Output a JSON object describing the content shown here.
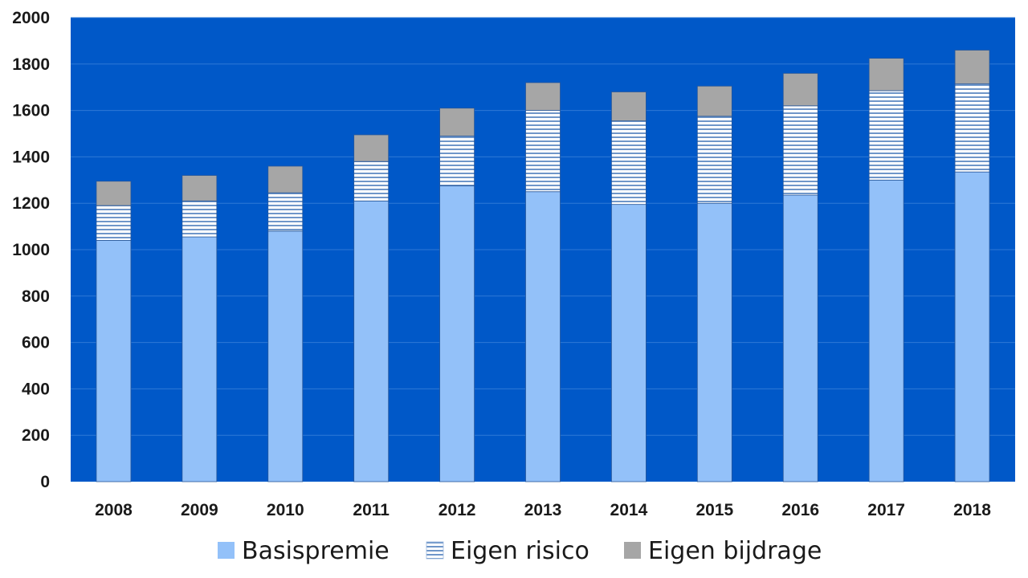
{
  "chart_data": {
    "type": "bar",
    "stacked": true,
    "categories": [
      "2008",
      "2009",
      "2010",
      "2011",
      "2012",
      "2013",
      "2014",
      "2015",
      "2016",
      "2017",
      "2018"
    ],
    "series": [
      {
        "name": "Basispremie",
        "values": [
          1040,
          1055,
          1080,
          1210,
          1275,
          1250,
          1195,
          1200,
          1235,
          1300,
          1335
        ],
        "color": "#93C1F9",
        "pattern": "solid"
      },
      {
        "name": "Eigen risico",
        "values": [
          150,
          155,
          165,
          170,
          215,
          350,
          360,
          375,
          385,
          385,
          380
        ],
        "color": "#DAE8FC",
        "pattern": "horizontal-lines"
      },
      {
        "name": "Eigen bijdrage",
        "values": [
          105,
          110,
          115,
          115,
          120,
          120,
          125,
          130,
          140,
          140,
          145
        ],
        "color": "#A6A6A6",
        "pattern": "solid"
      }
    ],
    "ylim": [
      0,
      2000
    ],
    "yticks": [
      0,
      200,
      400,
      600,
      800,
      1000,
      1200,
      1400,
      1600,
      1800,
      2000
    ],
    "grid": true,
    "legend_position": "bottom",
    "plot_background": "#0058C8",
    "grid_color": "#2E78D6"
  }
}
